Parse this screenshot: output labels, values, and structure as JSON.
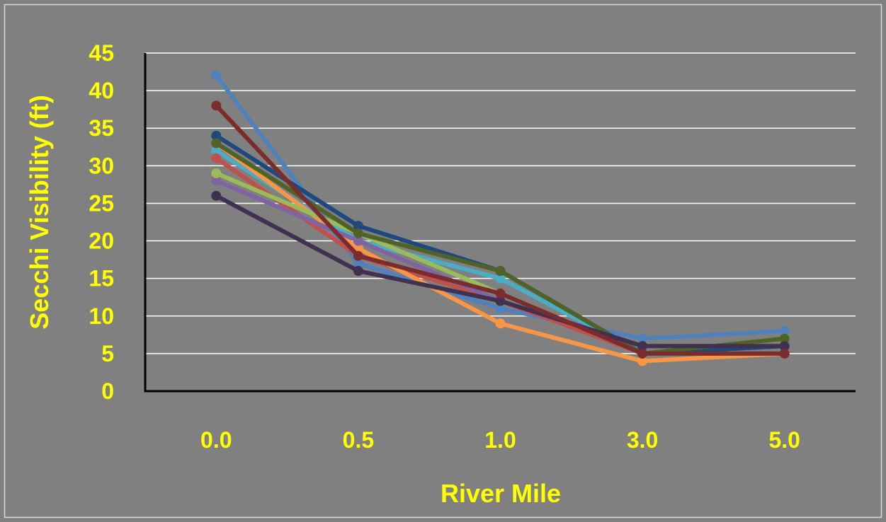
{
  "chart_data": {
    "type": "line",
    "title": "",
    "xlabel": "River Mile",
    "ylabel": "Secchi Visibility (ft)",
    "categories": [
      "0.0",
      "0.5",
      "1.0",
      "3.0",
      "5.0"
    ],
    "ylim": [
      0,
      45
    ],
    "yticks": [
      0,
      5,
      10,
      15,
      20,
      25,
      30,
      35,
      40,
      45
    ],
    "grid": true,
    "legend": "none",
    "series": [
      {
        "color": "#4f81bd",
        "values": [
          42,
          17,
          11,
          7,
          8
        ]
      },
      {
        "color": "#4bacc6",
        "values": [
          32,
          20,
          15,
          5,
          6
        ]
      },
      {
        "color": "#c0504d",
        "values": [
          31,
          18,
          12,
          5,
          5
        ]
      },
      {
        "color": "#f79646",
        "values": [
          33,
          19,
          9,
          4,
          5
        ]
      },
      {
        "color": "#8064a2",
        "values": [
          28,
          20,
          12,
          6,
          6
        ]
      },
      {
        "color": "#9bbb59",
        "values": [
          29,
          21,
          13,
          5,
          7
        ]
      },
      {
        "color": "#1f497d",
        "values": [
          34,
          22,
          16,
          5,
          6
        ]
      },
      {
        "color": "#4f6228",
        "values": [
          33,
          21,
          16,
          5,
          7
        ]
      },
      {
        "color": "#403151",
        "values": [
          26,
          16,
          12,
          6,
          6
        ]
      },
      {
        "color": "#7b2c2c",
        "values": [
          38,
          18,
          13,
          5,
          5
        ]
      }
    ]
  },
  "colors": {
    "background": "#808080",
    "plot_border": "#d9d9d9",
    "text": "#ffff00",
    "gridline": "#ffffff",
    "axis": "#000000"
  }
}
